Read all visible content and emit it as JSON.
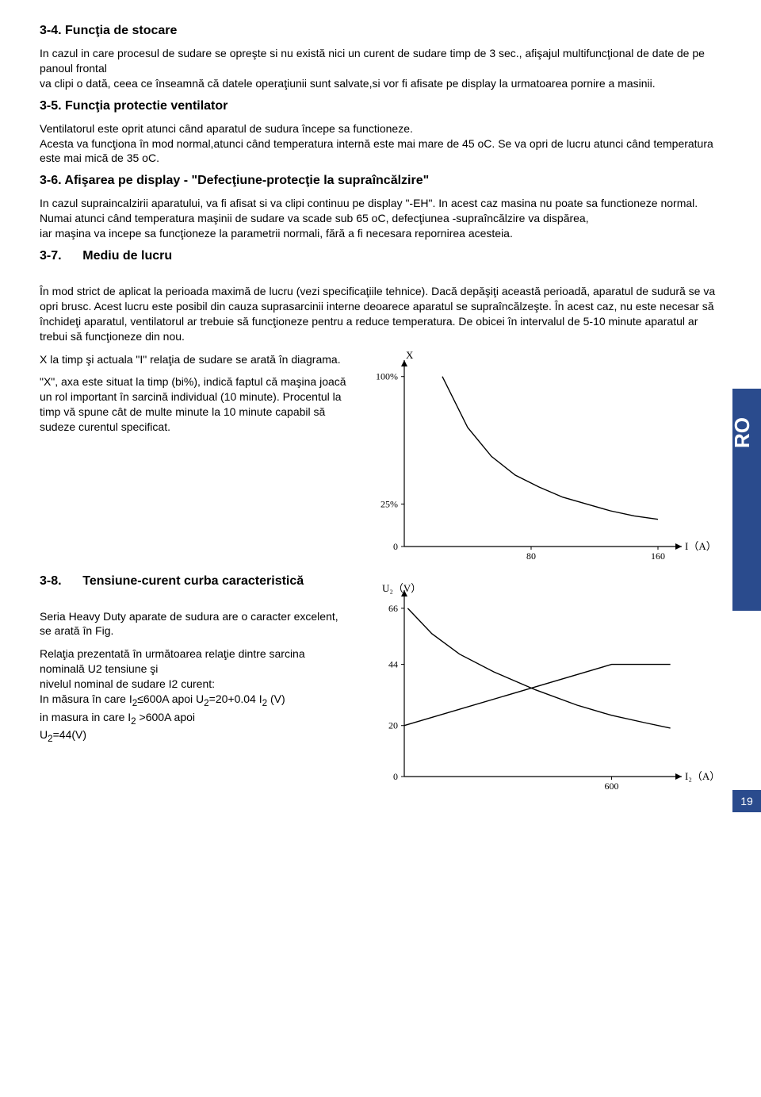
{
  "sideTab": "RO",
  "pageNumber": "19",
  "s34": {
    "heading": "3-4. Funcţia de stocare",
    "p1": "In cazul in care procesul de sudare se opreşte si nu există nici un curent de sudare timp de 3 sec., afişajul multifuncţional de date de pe panoul frontal",
    "p2": "va clipi o dată, ceea ce înseamnă că datele operaţiunii sunt salvate,si vor fi afisate pe display la urmatoarea pornire a masinii."
  },
  "s35": {
    "heading": "3-5. Funcţia protectie ventilator",
    "p1": "Ventilatorul este oprit atunci când aparatul de sudura începe sa functioneze.",
    "p2": "Acesta va funcţiona în mod normal,atunci când temperatura internă este mai mare de 45 oC. Se va opri de lucru atunci când temperatura este mai mică de 35 oC."
  },
  "s36": {
    "heading": "3-6. Afişarea pe display - \"Defecţiune-protecţie la supraîncălzire\"",
    "p1": "In cazul supraincalzirii aparatului, va fi afisat si va clipi continuu pe display \"-EH\". In acest caz masina nu poate sa functioneze normal.",
    "p2": "Numai atunci când temperatura maşinii de sudare va scade sub 65 oC, defecţiunea -supraîncălzire va dispărea,",
    "p3": "iar maşina va incepe sa funcţioneze la parametrii normali, fără a fi necesara repornirea acesteia."
  },
  "s37": {
    "heading": "3-7.      Mediu de lucru",
    "p1": "În mod strict de aplicat la perioada maximă de lucru (vezi specificaţiile tehnice). Dacă depăşiţi această perioadă, aparatul de sudură se va opri brusc. Acest lucru este posibil din cauza suprasarcinii interne deoarece aparatul se supraîncălzeşte. În acest caz, nu este necesar să închideţi aparatul, ventilatorul ar trebuie să funcţioneze pentru a reduce temperatura. De obicei în intervalul de 5-10 minute aparatul ar trebui să funcţioneze din nou.",
    "p2": "X la timp şi actuala \"I\" relaţia de sudare se arată în diagrama.",
    "p3": "\"X\", axa este situat la timp (bi%), indică faptul că maşina joacă un rol important în sarcină individual (10 minute). Procentul la timp vă spune cât de multe minute la 10 minute capabil să sudeze curentul specificat."
  },
  "s38": {
    "heading": "3-8.      Tensiune-curent curba caracteristică",
    "p1": "Seria Heavy Duty aparate de sudura are o caracter excelent, se arată în Fig.",
    "p2": "Relaţia prezentată în următoarea relaţie dintre sarcina nominală U2 tensiune şi",
    "p3": "nivelul nominal de sudare I2 curent:",
    "p4_a": "In măsura în care I",
    "p4_b": "≤600A apoi U",
    "p4_c": "=20+0.04 I",
    "p4_d": " (V)",
    "p5_a": "in masura in care I",
    "p5_b": " >600A apoi",
    "p6_a": "U",
    "p6_b": "=44(V)",
    "sub2": "2"
  },
  "chart1": {
    "type": "line",
    "xlabel": "I（A）",
    "ylabel_top": "X",
    "ytick_labels": [
      "100%",
      "25%",
      "0"
    ],
    "ytick_values": [
      100,
      25,
      0
    ],
    "xtick_labels": [
      "80",
      "160"
    ],
    "xtick_values": [
      80,
      160
    ],
    "xlim": [
      0,
      170
    ],
    "ylim": [
      0,
      105
    ],
    "line_color": "#000000",
    "axis_color": "#000000",
    "background": "#ffffff",
    "curve_points": [
      [
        24,
        100
      ],
      [
        40,
        70
      ],
      [
        55,
        53
      ],
      [
        70,
        42
      ],
      [
        85,
        35
      ],
      [
        100,
        29
      ],
      [
        115,
        25
      ],
      [
        130,
        21
      ],
      [
        145,
        18
      ],
      [
        160,
        16
      ]
    ]
  },
  "chart2": {
    "type": "line",
    "xlabel": "I₂（A）",
    "ylabel": "U₂（V）",
    "ytick_labels": [
      "66",
      "44",
      "20",
      "0"
    ],
    "ytick_values": [
      66,
      44,
      20,
      0
    ],
    "xtick_labels": [
      "600"
    ],
    "xtick_values": [
      600
    ],
    "xlim": [
      0,
      780
    ],
    "ylim": [
      0,
      70
    ],
    "line_color": "#000000",
    "axis_color": "#000000",
    "background": "#ffffff"
  }
}
